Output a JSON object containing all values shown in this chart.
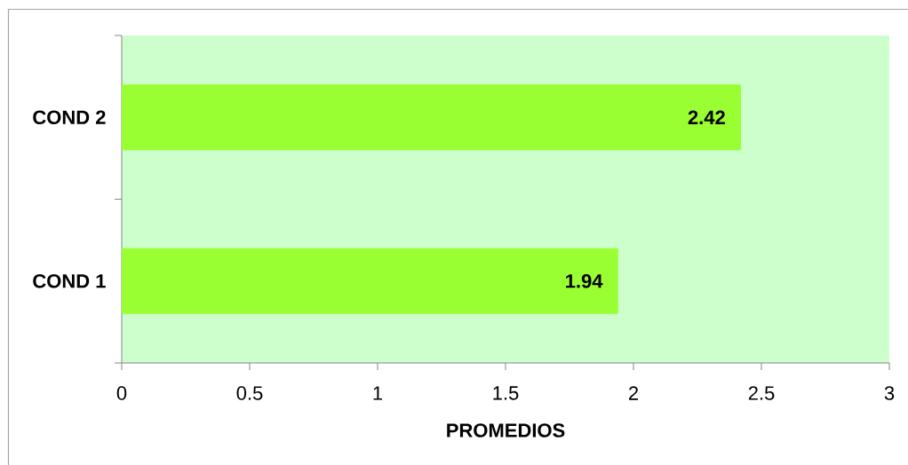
{
  "chart_data": {
    "type": "bar",
    "orientation": "horizontal",
    "categories": [
      "COND 2",
      "COND 1"
    ],
    "values": [
      2.42,
      1.94
    ],
    "color": "#99ff33",
    "xlabel": "PROMEDIOS",
    "xlim": [
      0,
      3
    ],
    "xticks": [
      0,
      0.5,
      1,
      1.5,
      2,
      2.5,
      3
    ],
    "data_labels": true
  }
}
